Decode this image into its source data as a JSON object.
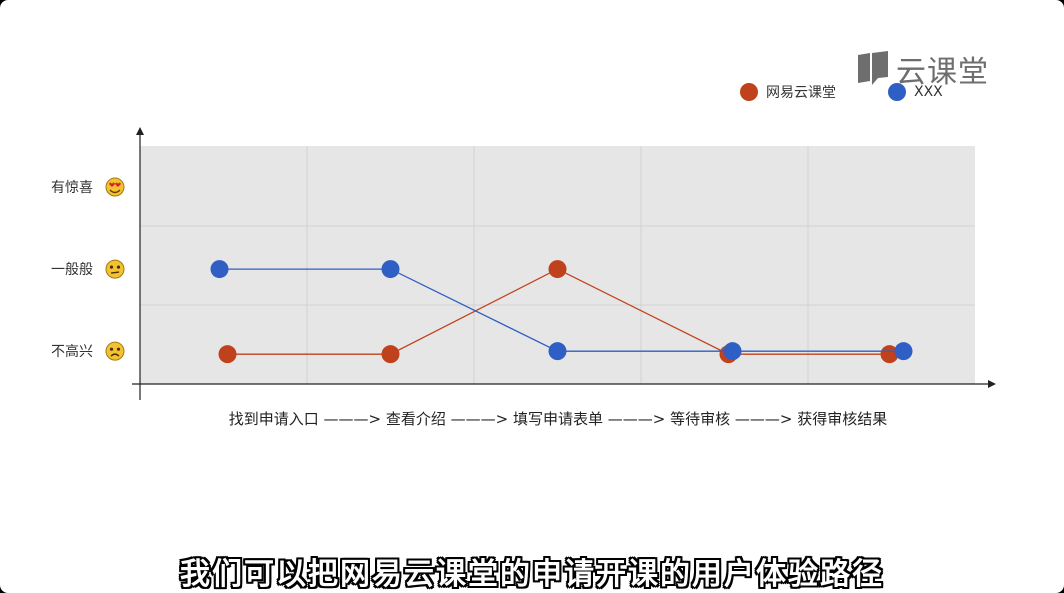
{
  "watermark": {
    "icon": "book-flag-icon",
    "text": "云课堂"
  },
  "subtitle": "我们可以把网易云课堂的申请开课的用户体验路径",
  "chart_data": {
    "type": "line",
    "categories": [
      "找到申请入口",
      "查看介绍",
      "填写申请表单",
      "等待审核",
      "获得审核结果"
    ],
    "x_axis_text": "找到申请入口 ———> 查看介绍 ———> 填写申请表单 ———> 等待审核 ———> 获得审核结果",
    "y_levels": [
      "不高兴",
      "一般般",
      "有惊喜"
    ],
    "y_level_icons": [
      "frowning-face-icon",
      "neutral-face-icon",
      "heart-eyes-face-icon"
    ],
    "grid": true,
    "legend_position": "top-right",
    "series": [
      {
        "name": "网易云课堂",
        "color": "#c0421c",
        "values": [
          1,
          1,
          2,
          1,
          1
        ]
      },
      {
        "name": "XXX",
        "color": "#2f5fc4",
        "values": [
          2,
          2,
          1,
          1,
          1
        ]
      }
    ],
    "ylim": [
      0.6,
      3.5
    ]
  }
}
